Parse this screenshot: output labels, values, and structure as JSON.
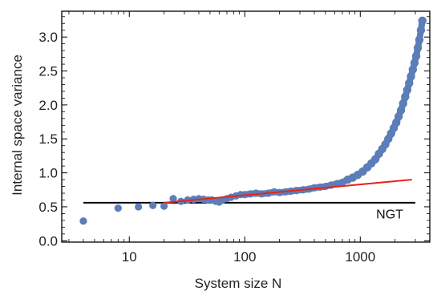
{
  "chart_data": {
    "type": "scatter",
    "xlabel": "System size N",
    "ylabel": "Internal space variance",
    "x_scale": "log",
    "xlim": [
      2.6,
      4000
    ],
    "ylim": [
      -0.02,
      3.38
    ],
    "x_ticks": [
      {
        "value": 10,
        "label": "10"
      },
      {
        "value": 100,
        "label": "100"
      },
      {
        "value": 1000,
        "label": "1000"
      }
    ],
    "y_ticks": [
      {
        "value": 0.0,
        "label": "0.0"
      },
      {
        "value": 0.5,
        "label": "0.5"
      },
      {
        "value": 1.0,
        "label": "1.0"
      },
      {
        "value": 1.5,
        "label": "1.5"
      },
      {
        "value": 2.0,
        "label": "2.0"
      },
      {
        "value": 2.5,
        "label": "2.5"
      },
      {
        "value": 3.0,
        "label": "3.0"
      }
    ],
    "grid": false,
    "colors": {
      "points": "#5b7db8",
      "fit": "#e8231c",
      "reference": "#000000"
    },
    "series": [
      {
        "kind": "points",
        "x": [
          4,
          8,
          12,
          16,
          20,
          24,
          28,
          32,
          36,
          40,
          44,
          48,
          52,
          56,
          60,
          64,
          70,
          76,
          84,
          92,
          100,
          112,
          125,
          140,
          160,
          180,
          200,
          225,
          250,
          280,
          320,
          360,
          400,
          450,
          500,
          560,
          630,
          700,
          780,
          860,
          950,
          1050,
          1150,
          1250,
          1350,
          1450,
          1550,
          1650,
          1750,
          1850,
          1950,
          2050,
          2150,
          2250,
          2350,
          2450,
          2550,
          2650,
          2750,
          2850,
          2950,
          3050,
          3150,
          3250,
          3350,
          3450
        ],
        "y": [
          0.29,
          0.48,
          0.5,
          0.52,
          0.51,
          0.62,
          0.58,
          0.6,
          0.61,
          0.62,
          0.61,
          0.6,
          0.6,
          0.58,
          0.57,
          0.6,
          0.62,
          0.64,
          0.66,
          0.68,
          0.68,
          0.69,
          0.7,
          0.69,
          0.7,
          0.72,
          0.71,
          0.72,
          0.73,
          0.74,
          0.75,
          0.76,
          0.78,
          0.79,
          0.8,
          0.82,
          0.84,
          0.86,
          0.9,
          0.93,
          0.97,
          1.02,
          1.08,
          1.14,
          1.2,
          1.28,
          1.35,
          1.42,
          1.5,
          1.58,
          1.66,
          1.74,
          1.83,
          1.92,
          2.02,
          2.12,
          2.22,
          2.32,
          2.42,
          2.52,
          2.62,
          2.72,
          2.84,
          2.96,
          3.1,
          3.24
        ]
      },
      {
        "kind": "fit-line",
        "x": [
          20,
          2800
        ],
        "y": [
          0.56,
          0.9
        ]
      },
      {
        "kind": "reference-line",
        "name": "NGT",
        "x": [
          4,
          3000
        ],
        "y": [
          0.56,
          0.56
        ]
      }
    ],
    "annotations": [
      {
        "text": "NGT",
        "x": 1800,
        "y": 0.4
      }
    ]
  }
}
